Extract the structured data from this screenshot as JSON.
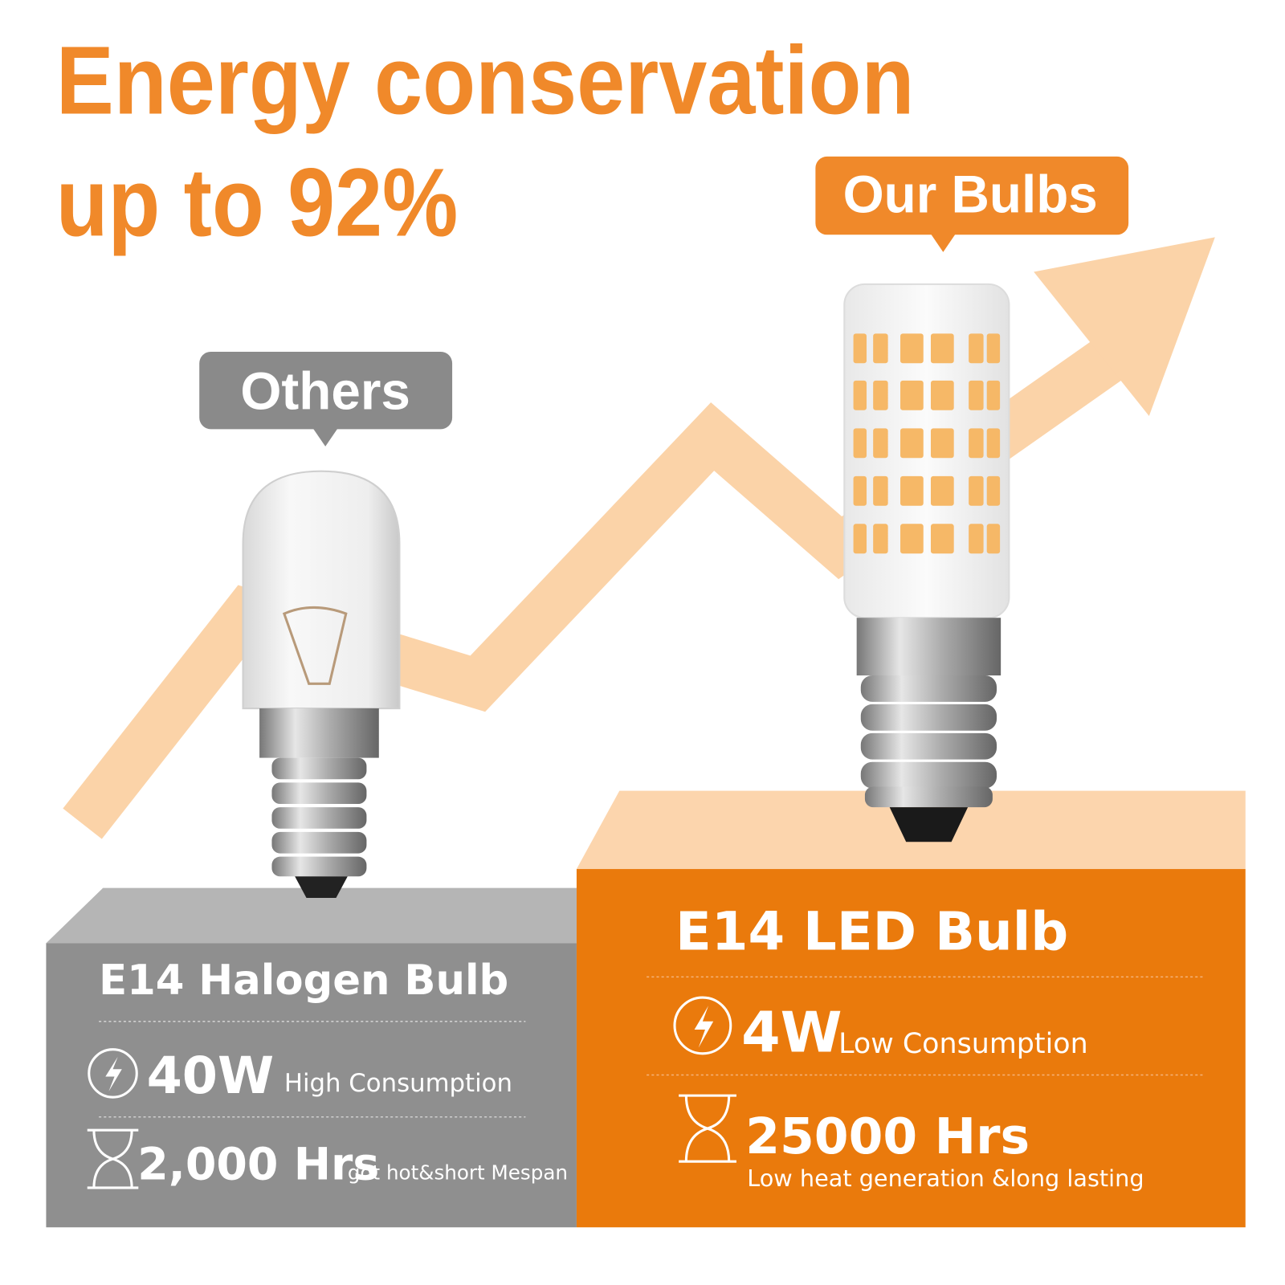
{
  "headline": {
    "line1": "Energy conservation",
    "line2": "up to 92%"
  },
  "labels": {
    "ours": "Our Bulbs",
    "others": "Others"
  },
  "halogen": {
    "name": "E14 Halogen Bulb",
    "power": "40W",
    "power_note": "High Consumption",
    "life": "2,000 Hrs",
    "life_note": "got hot&short Mespan"
  },
  "led": {
    "name": "E14 LED Bulb",
    "power": "4W",
    "power_note": "Low Consumption",
    "life": "25000 Hrs",
    "life_note": "Low heat generation &long lasting"
  }
}
